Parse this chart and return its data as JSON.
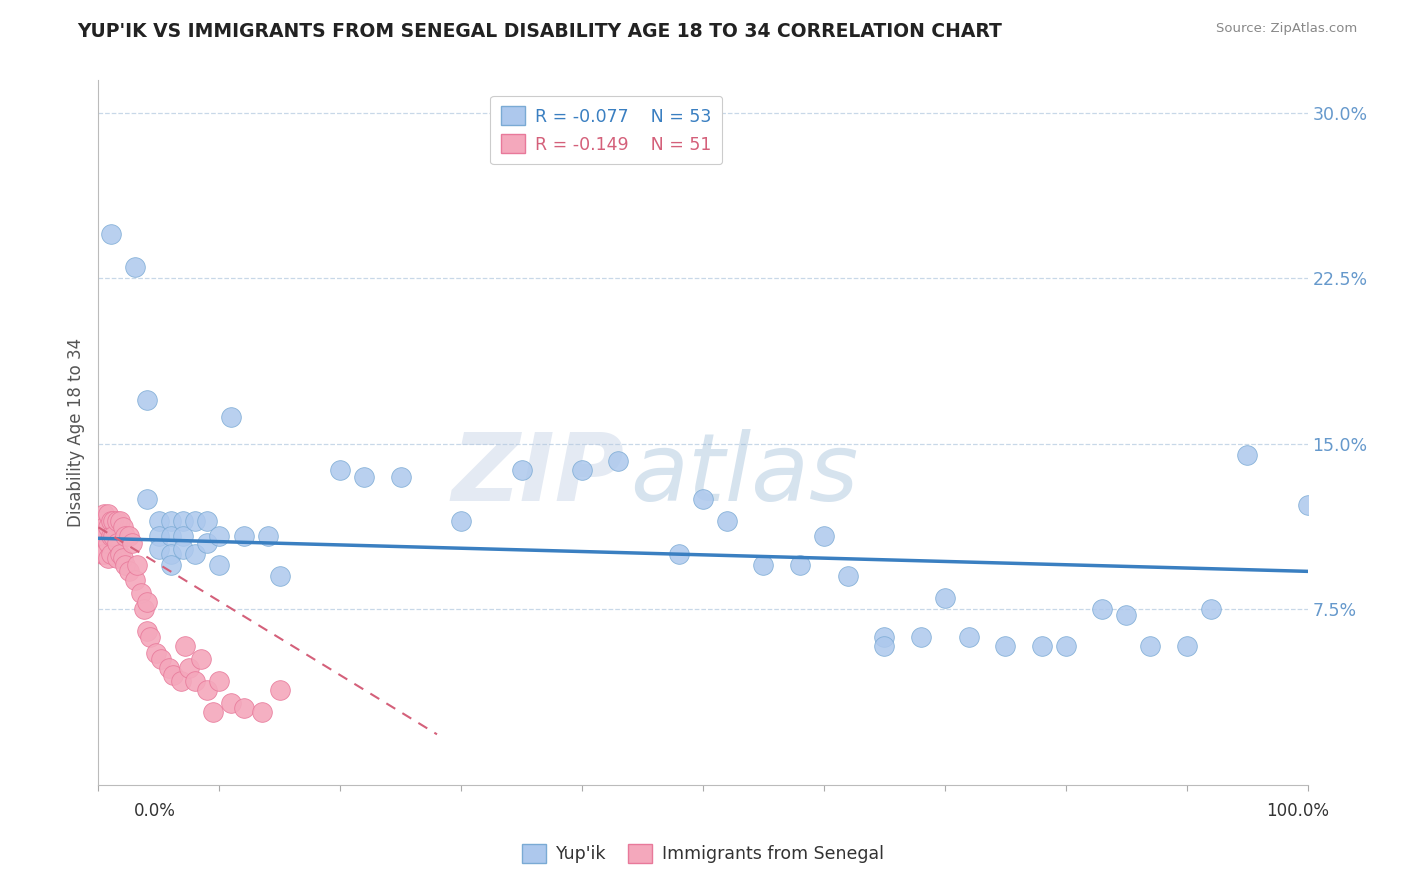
{
  "title": "YUP'IK VS IMMIGRANTS FROM SENEGAL DISABILITY AGE 18 TO 34 CORRELATION CHART",
  "source": "Source: ZipAtlas.com",
  "ylabel": "Disability Age 18 to 34",
  "xlim": [
    0.0,
    1.0
  ],
  "ylim": [
    -0.005,
    0.315
  ],
  "yticks": [
    0.075,
    0.15,
    0.225,
    0.3
  ],
  "ytick_labels": [
    "7.5%",
    "15.0%",
    "22.5%",
    "30.0%"
  ],
  "legend_r1": "R = -0.077",
  "legend_n1": "N = 53",
  "legend_r2": "R = -0.149",
  "legend_n2": "N = 51",
  "series1_label": "Yup'ik",
  "series2_label": "Immigrants from Senegal",
  "series1_color": "#adc8ed",
  "series2_color": "#f4a8bc",
  "series1_edge": "#7aaad4",
  "series2_edge": "#e8799a",
  "trend1_color": "#3a7fc1",
  "trend2_color": "#d4607a",
  "watermark_zip": "ZIP",
  "watermark_atlas": "atlas",
  "background_color": "#ffffff",
  "title_color": "#222222",
  "title_fontsize": 13.5,
  "ytick_color": "#6699cc",
  "grid_color": "#c8d8e8",
  "yup_x": [
    0.01,
    0.03,
    0.04,
    0.04,
    0.05,
    0.05,
    0.05,
    0.06,
    0.06,
    0.06,
    0.06,
    0.07,
    0.07,
    0.07,
    0.08,
    0.08,
    0.09,
    0.09,
    0.1,
    0.1,
    0.11,
    0.12,
    0.14,
    0.15,
    0.2,
    0.22,
    0.25,
    0.3,
    0.35,
    0.4,
    0.43,
    0.48,
    0.5,
    0.52,
    0.55,
    0.58,
    0.6,
    0.62,
    0.65,
    0.65,
    0.68,
    0.7,
    0.72,
    0.75,
    0.78,
    0.8,
    0.83,
    0.85,
    0.87,
    0.9,
    0.92,
    0.95,
    1.0
  ],
  "yup_y": [
    0.245,
    0.23,
    0.17,
    0.125,
    0.115,
    0.108,
    0.102,
    0.115,
    0.108,
    0.1,
    0.095,
    0.115,
    0.108,
    0.102,
    0.115,
    0.1,
    0.115,
    0.105,
    0.108,
    0.095,
    0.162,
    0.108,
    0.108,
    0.09,
    0.138,
    0.135,
    0.135,
    0.115,
    0.138,
    0.138,
    0.142,
    0.1,
    0.125,
    0.115,
    0.095,
    0.095,
    0.108,
    0.09,
    0.062,
    0.058,
    0.062,
    0.08,
    0.062,
    0.058,
    0.058,
    0.058,
    0.075,
    0.072,
    0.058,
    0.058,
    0.075,
    0.145,
    0.122
  ],
  "sen_x": [
    0.003,
    0.003,
    0.003,
    0.005,
    0.005,
    0.005,
    0.005,
    0.008,
    0.008,
    0.008,
    0.008,
    0.01,
    0.01,
    0.01,
    0.012,
    0.012,
    0.015,
    0.015,
    0.015,
    0.018,
    0.018,
    0.02,
    0.02,
    0.022,
    0.022,
    0.025,
    0.025,
    0.028,
    0.03,
    0.032,
    0.035,
    0.038,
    0.04,
    0.04,
    0.043,
    0.048,
    0.052,
    0.058,
    0.062,
    0.068,
    0.072,
    0.075,
    0.08,
    0.085,
    0.09,
    0.095,
    0.1,
    0.11,
    0.12,
    0.135,
    0.15
  ],
  "sen_y": [
    0.115,
    0.108,
    0.1,
    0.118,
    0.112,
    0.108,
    0.1,
    0.118,
    0.112,
    0.105,
    0.098,
    0.115,
    0.108,
    0.1,
    0.115,
    0.108,
    0.115,
    0.105,
    0.098,
    0.115,
    0.1,
    0.112,
    0.098,
    0.108,
    0.095,
    0.108,
    0.092,
    0.105,
    0.088,
    0.095,
    0.082,
    0.075,
    0.078,
    0.065,
    0.062,
    0.055,
    0.052,
    0.048,
    0.045,
    0.042,
    0.058,
    0.048,
    0.042,
    0.052,
    0.038,
    0.028,
    0.042,
    0.032,
    0.03,
    0.028,
    0.038
  ],
  "trend1_x0": 0.0,
  "trend1_y0": 0.107,
  "trend1_x1": 1.0,
  "trend1_y1": 0.092,
  "trend2_x0": 0.0,
  "trend2_y0": 0.112,
  "trend2_x1": 0.28,
  "trend2_y1": 0.018
}
